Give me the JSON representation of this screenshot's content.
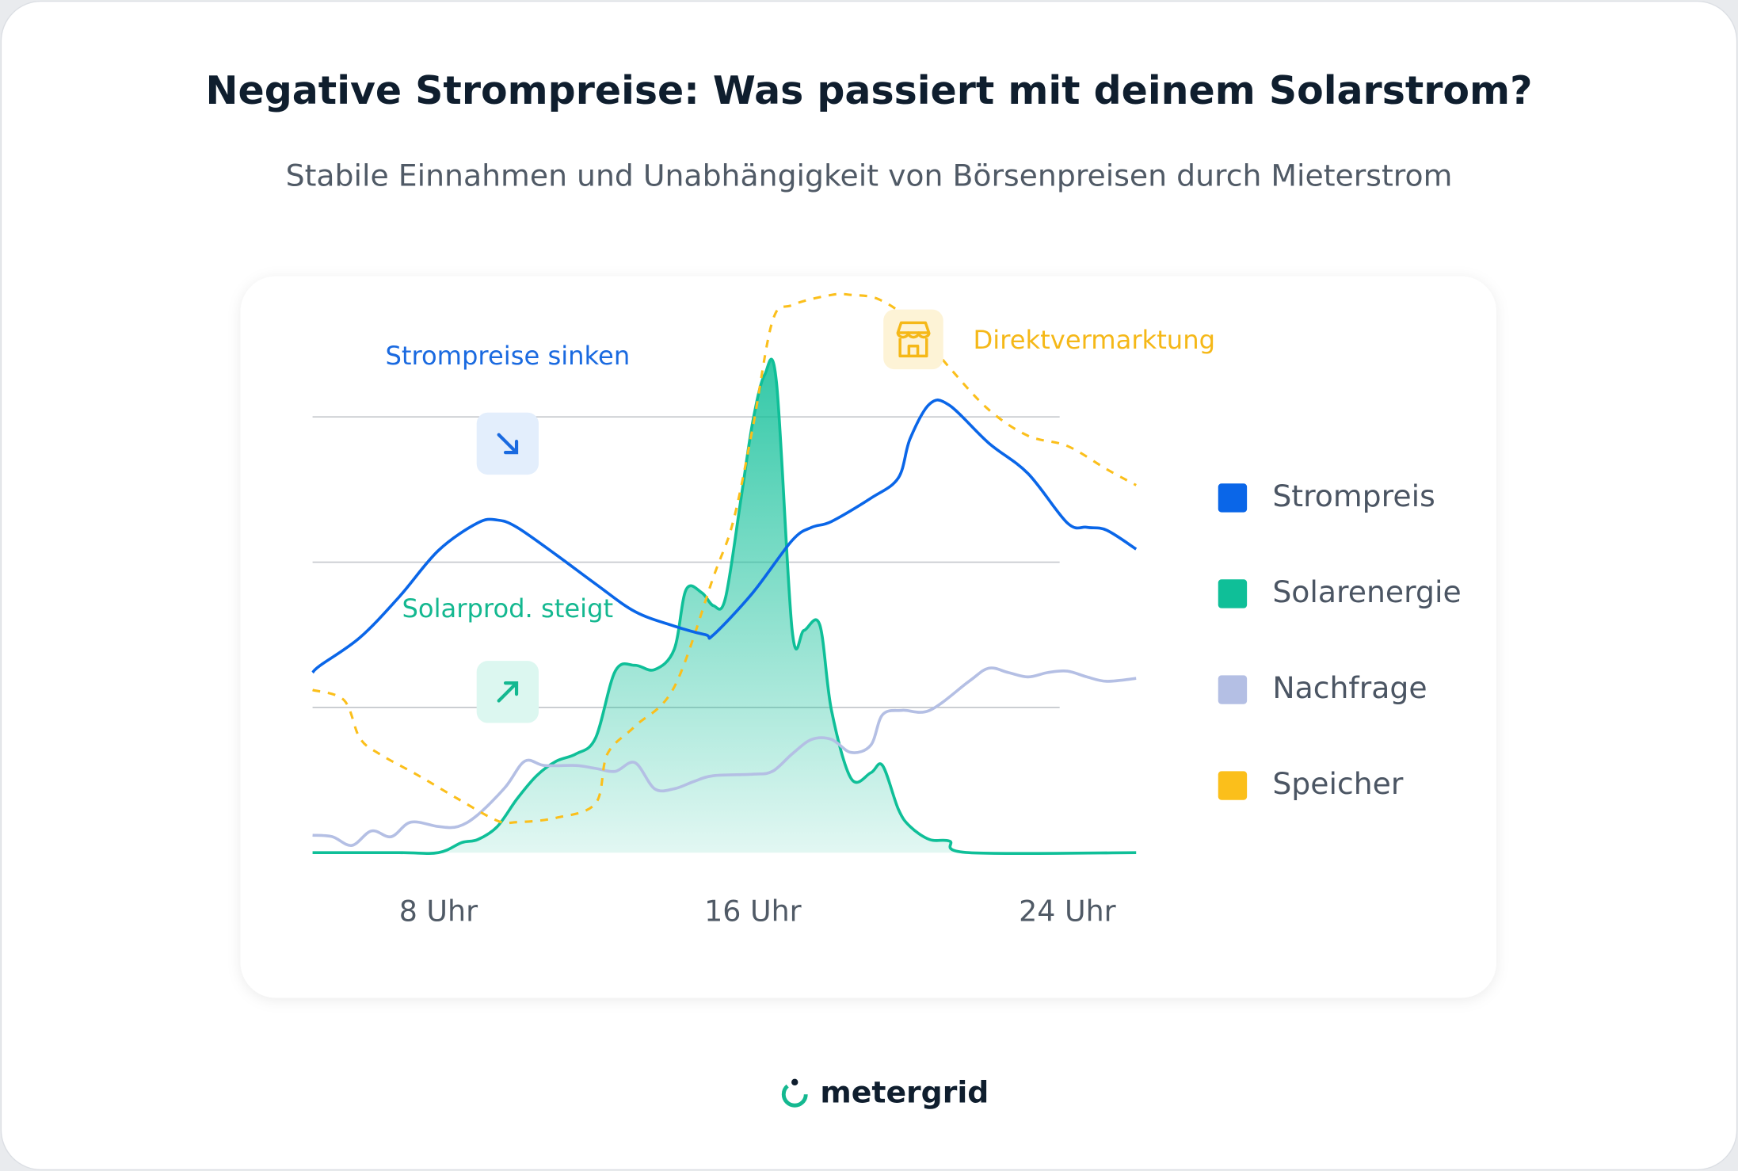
{
  "chart_data": {
    "type": "line",
    "title": "Negative Strompreise: Was passiert mit deinem Solarstrom?",
    "subtitle": "Stabile Einnahmen und Unabhängigkeit von Börsenpreisen durch Mieterstrom",
    "annotations": [
      {
        "text": "Strompreise sinken",
        "color": "#1a6ae0"
      },
      {
        "text": "Solarprod. steigt",
        "color": "#14b890"
      },
      {
        "text": "Direktvermarktung",
        "color": "#f5b818"
      }
    ],
    "xlim": [
      4.8,
      25.75
    ],
    "xticks": [
      {
        "value": 8,
        "label": "8 Uhr"
      },
      {
        "value": 16,
        "label": "16 Uhr"
      },
      {
        "value": 24,
        "label": "24 Uhr"
      }
    ],
    "ylim": [
      0,
      3.9
    ],
    "yticks": [
      1,
      2,
      3
    ],
    "grid": true,
    "legend": "right",
    "series": [
      {
        "name": "Strompreis",
        "color": "#0a66e8",
        "x": [
          4.8,
          5,
          6,
          7,
          8,
          9,
          9.5,
          10,
          11,
          12,
          13,
          14,
          14.8,
          15,
          16,
          17,
          17.5,
          18,
          19,
          19.7,
          20,
          20.5,
          21,
          22,
          23,
          24,
          24.5,
          25,
          25.75
        ],
        "values": [
          1.24,
          1.29,
          1.48,
          1.76,
          2.08,
          2.27,
          2.29,
          2.24,
          2.05,
          1.85,
          1.66,
          1.56,
          1.5,
          1.5,
          1.79,
          2.15,
          2.24,
          2.28,
          2.44,
          2.58,
          2.85,
          3.09,
          3.08,
          2.82,
          2.61,
          2.27,
          2.24,
          2.22,
          2.09
        ]
      },
      {
        "name": "Solarenergie",
        "color": "#0fbf98",
        "fill": true,
        "x": [
          4.8,
          7,
          8,
          8.6,
          9,
          9.5,
          10,
          10.5,
          11,
          11.5,
          12,
          12.5,
          13,
          13.5,
          14,
          14.3,
          14.7,
          15,
          15.3,
          15.7,
          16,
          16.3,
          16.6,
          17,
          17.3,
          17.7,
          18,
          18.5,
          19,
          19.3,
          19.7,
          20,
          20.5,
          21,
          21.5,
          25.75
        ],
        "values": [
          0,
          0,
          0,
          0.07,
          0.09,
          0.18,
          0.37,
          0.53,
          0.63,
          0.68,
          0.79,
          1.25,
          1.29,
          1.26,
          1.4,
          1.81,
          1.79,
          1.7,
          1.75,
          2.44,
          2.97,
          3.29,
          3.24,
          1.53,
          1.53,
          1.57,
          0.98,
          0.51,
          0.55,
          0.6,
          0.3,
          0.18,
          0.09,
          0.08,
          0,
          0
        ]
      },
      {
        "name": "Nachfrage",
        "color": "#b4bfe4",
        "x": [
          4.8,
          5.3,
          5.8,
          6.3,
          6.8,
          7.3,
          8,
          8.5,
          9,
          9.7,
          10.2,
          10.7,
          11.5,
          12,
          12.5,
          13,
          13.5,
          14,
          14.5,
          15,
          16,
          16.5,
          17,
          17.5,
          18,
          18.5,
          19,
          19.3,
          19.8,
          20.5,
          21.5,
          22,
          22.5,
          23,
          23.5,
          24,
          24.5,
          25,
          25.75
        ],
        "values": [
          0.12,
          0.11,
          0.05,
          0.15,
          0.11,
          0.21,
          0.18,
          0.18,
          0.26,
          0.45,
          0.63,
          0.6,
          0.6,
          0.58,
          0.56,
          0.62,
          0.44,
          0.44,
          0.49,
          0.53,
          0.54,
          0.56,
          0.68,
          0.78,
          0.78,
          0.69,
          0.74,
          0.95,
          0.98,
          0.98,
          1.18,
          1.27,
          1.24,
          1.21,
          1.24,
          1.25,
          1.21,
          1.18,
          1.2
        ]
      },
      {
        "name": "Speicher",
        "color": "#fbbf1b",
        "dashed": true,
        "x": [
          4.8,
          5.6,
          6,
          6.5,
          7.5,
          8.5,
          9.5,
          10,
          11,
          12,
          12.3,
          13,
          14,
          15,
          15.5,
          16,
          16.5,
          17,
          18,
          18.5,
          19.2,
          20,
          21,
          22,
          23,
          24,
          25,
          25.75
        ],
        "values": [
          1.12,
          1.05,
          0.79,
          0.68,
          0.53,
          0.37,
          0.22,
          0.21,
          0.24,
          0.34,
          0.68,
          0.87,
          1.14,
          1.9,
          2.28,
          2.93,
          3.66,
          3.77,
          3.84,
          3.84,
          3.81,
          3.66,
          3.34,
          3.05,
          2.87,
          2.8,
          2.64,
          2.53
        ]
      }
    ]
  },
  "logo": "metergrid"
}
